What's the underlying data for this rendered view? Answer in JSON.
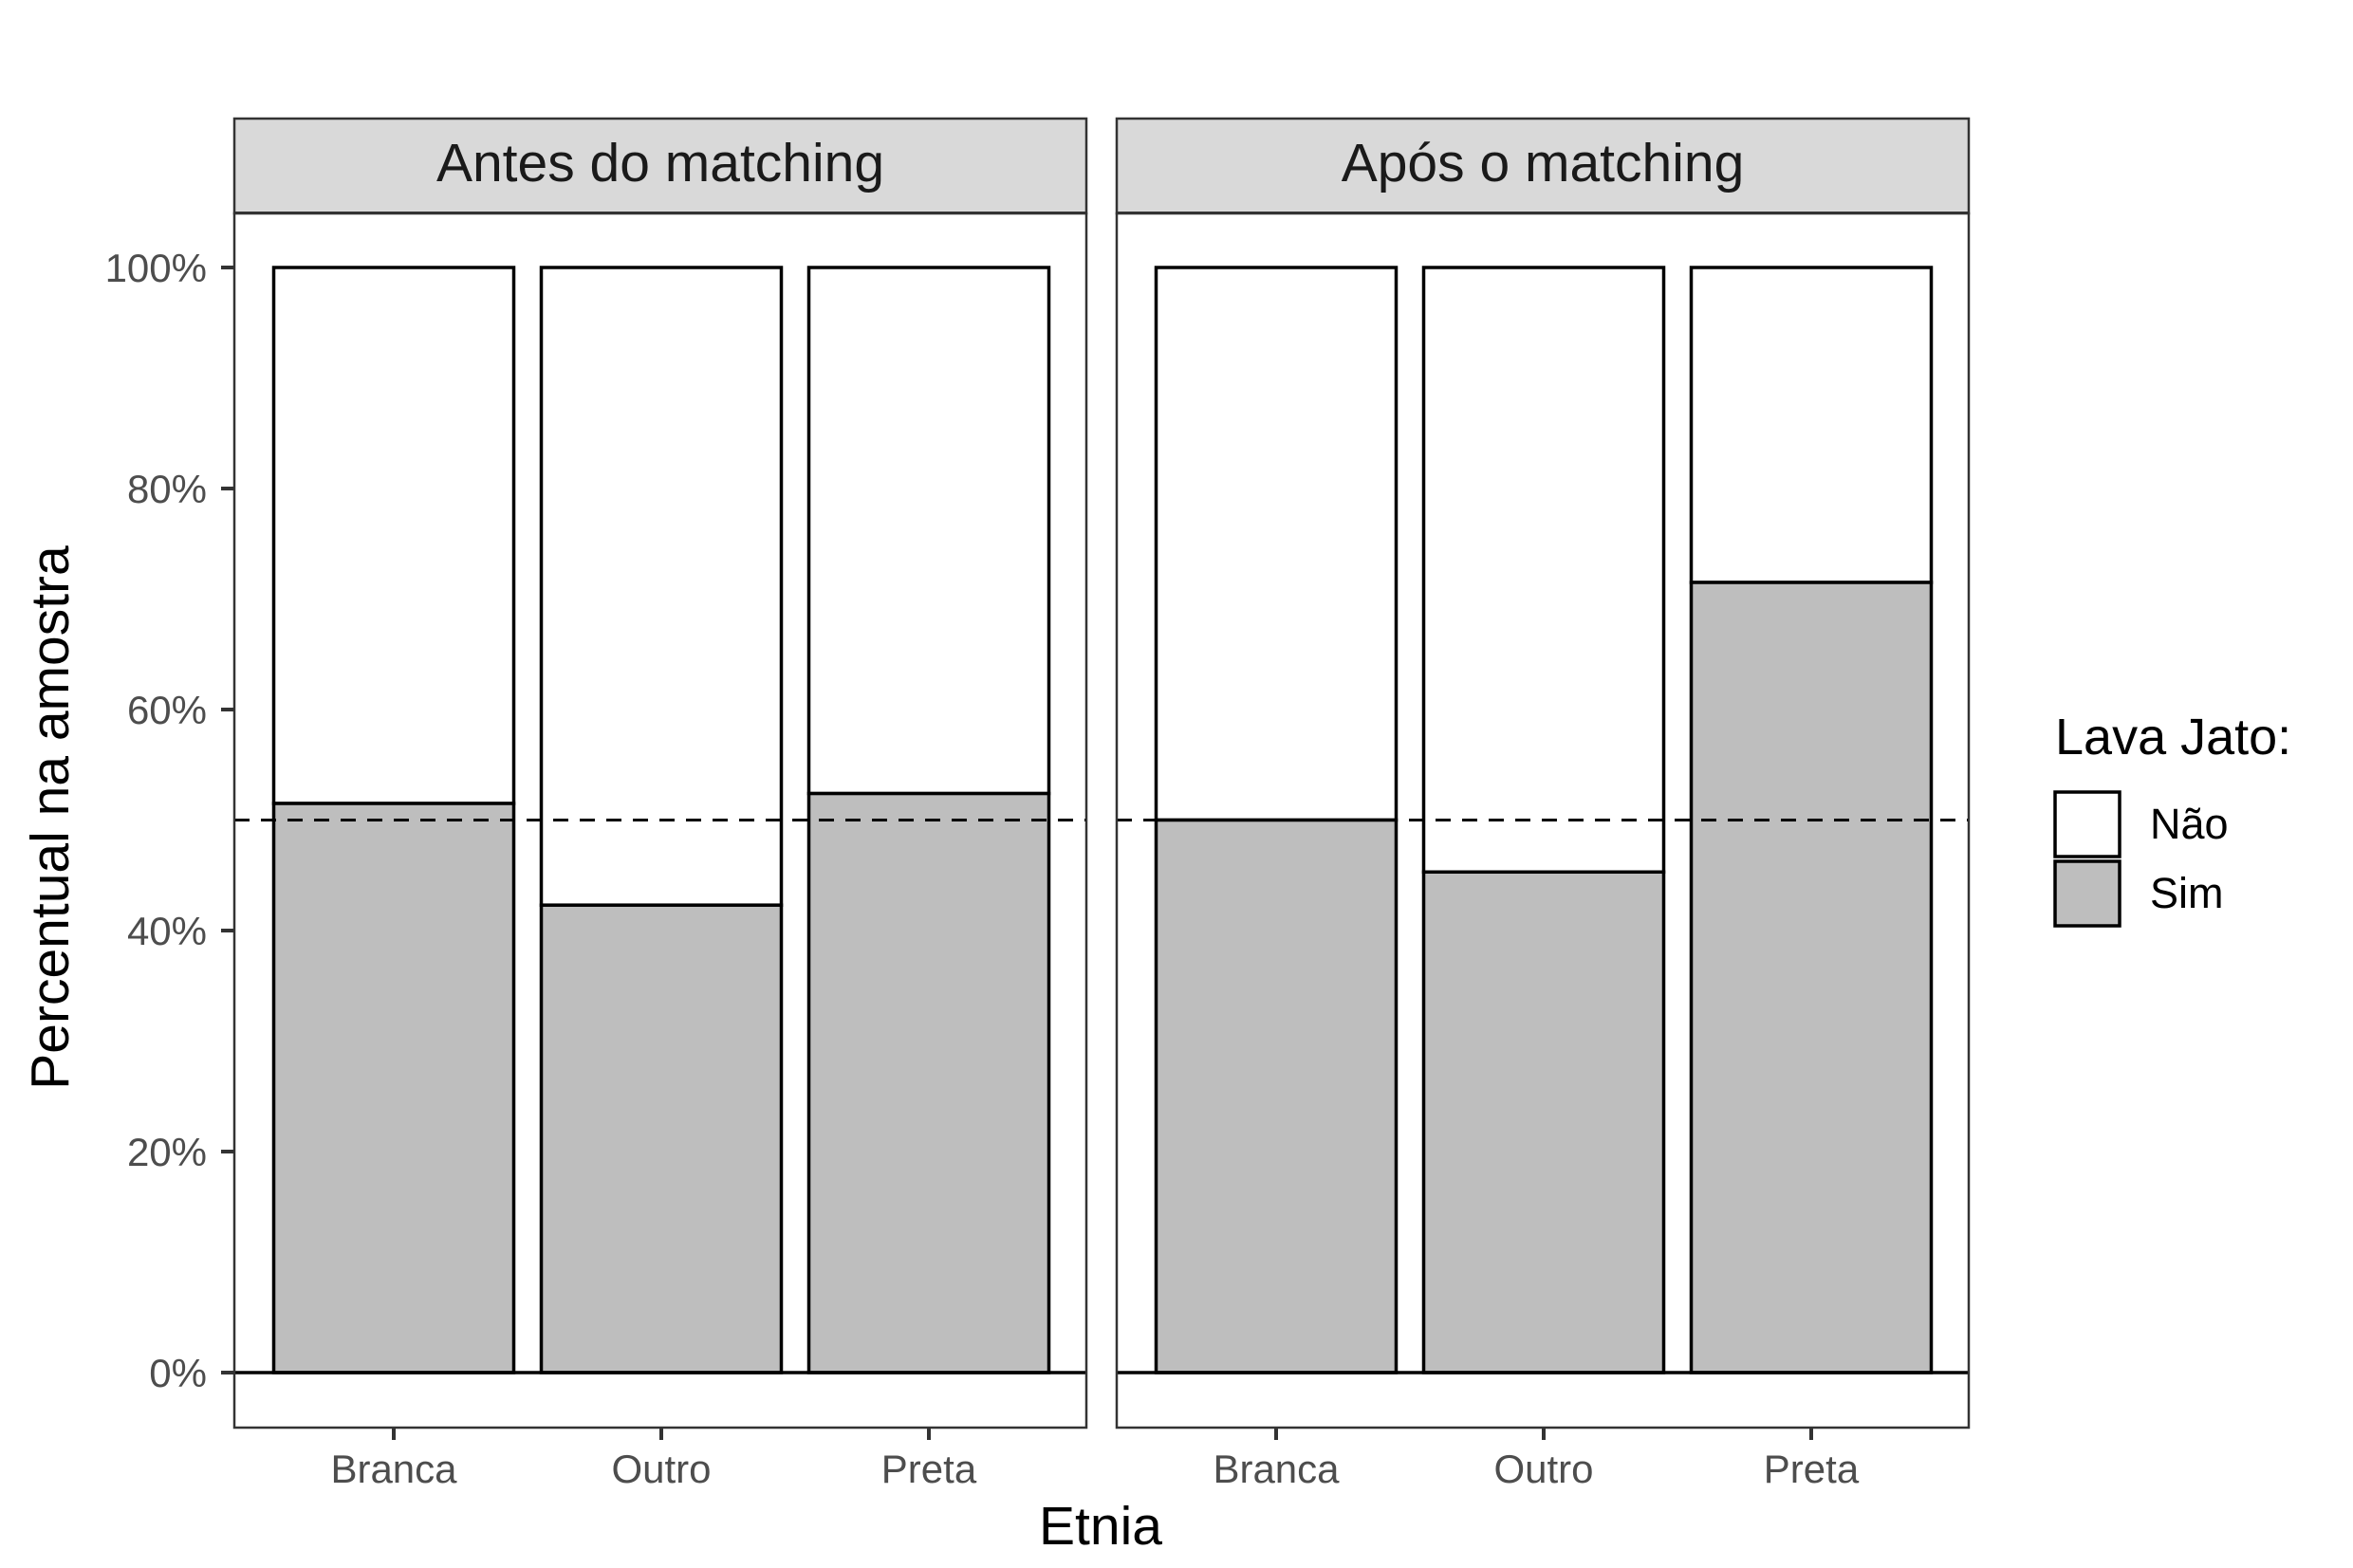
{
  "chart_data": {
    "type": "bar",
    "stacked": true,
    "facets": [
      {
        "title": "Antes do matching",
        "categories": [
          "Branca",
          "Outro",
          "Preta"
        ],
        "series": [
          {
            "name": "Sim",
            "values": [
              51.5,
              42.3,
              52.4
            ]
          },
          {
            "name": "Não",
            "values": [
              48.5,
              57.7,
              47.6
            ]
          }
        ]
      },
      {
        "title": "Após o matching",
        "categories": [
          "Branca",
          "Outro",
          "Preta"
        ],
        "series": [
          {
            "name": "Sim",
            "values": [
              50.0,
              45.3,
              71.5
            ]
          },
          {
            "name": "Não",
            "values": [
              50.0,
              54.7,
              28.5
            ]
          }
        ]
      }
    ],
    "xlabel": "Etnia",
    "ylabel": "Percentual na amostra",
    "ylim": [
      -5,
      105
    ],
    "yticks": [
      0,
      20,
      40,
      60,
      80,
      100
    ],
    "ytick_labels": [
      "0%",
      "20%",
      "40%",
      "60%",
      "80%",
      "100%"
    ],
    "reference_line": {
      "y": 50,
      "style": "dashed"
    },
    "legend": {
      "title": "Lava Jato:",
      "position": "right",
      "entries": [
        {
          "label": "Não",
          "color": "#ffffff"
        },
        {
          "label": "Sim",
          "color": "#bebebe"
        }
      ]
    },
    "colors": {
      "Sim": "#bebebe",
      "Não": "#ffffff",
      "strip": "#d9d9d9"
    }
  }
}
